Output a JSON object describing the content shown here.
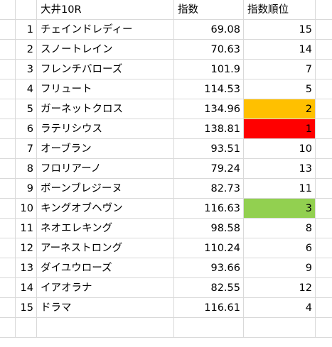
{
  "sheet": {
    "headers": {
      "name": "大井10R",
      "index": "指数",
      "rank": "指数順位"
    },
    "rows": [
      {
        "num": "1",
        "name": "チェインドレディー",
        "index": "69.08",
        "rank": "15",
        "fill": ""
      },
      {
        "num": "2",
        "name": "スノートレイン",
        "index": "70.63",
        "rank": "14",
        "fill": ""
      },
      {
        "num": "3",
        "name": "フレンチバローズ",
        "index": "101.9",
        "rank": "7",
        "fill": ""
      },
      {
        "num": "4",
        "name": "フリュート",
        "index": "114.53",
        "rank": "5",
        "fill": ""
      },
      {
        "num": "5",
        "name": "ガーネットクロス",
        "index": "134.96",
        "rank": "2",
        "fill": "#ffc000"
      },
      {
        "num": "6",
        "name": "ラテリシウス",
        "index": "138.81",
        "rank": "1",
        "fill": "#ff0000"
      },
      {
        "num": "7",
        "name": "オーブラン",
        "index": "93.51",
        "rank": "10",
        "fill": ""
      },
      {
        "num": "8",
        "name": "フロリアーノ",
        "index": "79.24",
        "rank": "13",
        "fill": ""
      },
      {
        "num": "9",
        "name": "ボーンブレジーヌ",
        "index": "82.73",
        "rank": "11",
        "fill": ""
      },
      {
        "num": "10",
        "name": "キングオブヘヴン",
        "index": "116.63",
        "rank": "3",
        "fill": "#92d050"
      },
      {
        "num": "11",
        "name": "ネオエレキング",
        "index": "98.58",
        "rank": "8",
        "fill": ""
      },
      {
        "num": "12",
        "name": "アーネストロング",
        "index": "110.24",
        "rank": "6",
        "fill": ""
      },
      {
        "num": "13",
        "name": "ダイユウローズ",
        "index": "93.66",
        "rank": "9",
        "fill": ""
      },
      {
        "num": "14",
        "name": "イアオラナ",
        "index": "82.55",
        "rank": "12",
        "fill": ""
      },
      {
        "num": "15",
        "name": "ドラマ",
        "index": "116.61",
        "rank": "4",
        "fill": ""
      }
    ]
  }
}
